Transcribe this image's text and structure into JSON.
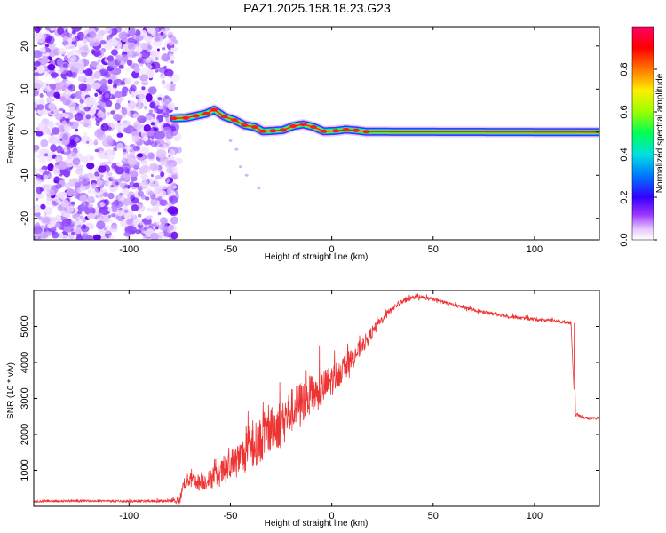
{
  "title": "PAZ1.2025.158.18.23.G23",
  "chart_data": [
    {
      "type": "heatmap",
      "xlabel": "Height of straight line (km)",
      "ylabel": "Frequency (Hz)",
      "xlim": [
        -147,
        132
      ],
      "ylim": [
        -25,
        24.5
      ],
      "xticks": [
        "-100",
        "-50",
        "0",
        "50",
        "100"
      ],
      "xtick_values": [
        -100,
        -50,
        0,
        50,
        100
      ],
      "yticks": [
        "20",
        "10",
        "0",
        "-10",
        "-20"
      ],
      "ytick_values": [
        20,
        10,
        0,
        -10,
        -20
      ],
      "colorbar": {
        "label": "Normalized spectral amplitude",
        "range": [
          0,
          1
        ],
        "ticks": [
          "0.0",
          "0.2",
          "0.4",
          "0.6",
          "0.8"
        ],
        "tick_values": [
          0.0,
          0.2,
          0.4,
          0.6,
          0.8
        ]
      },
      "noise_region_x": [
        -147,
        -77
      ],
      "ridge": [
        {
          "x": -78,
          "y": 3.2
        },
        {
          "x": -72,
          "y": 3.3
        },
        {
          "x": -67,
          "y": 3.8
        },
        {
          "x": -62,
          "y": 4.3
        },
        {
          "x": -58,
          "y": 5.2
        },
        {
          "x": -53,
          "y": 3.6
        },
        {
          "x": -48,
          "y": 2.8
        },
        {
          "x": -43,
          "y": 1.6
        },
        {
          "x": -38,
          "y": 1.2
        },
        {
          "x": -34,
          "y": 0.2
        },
        {
          "x": -29,
          "y": 0.3
        },
        {
          "x": -24,
          "y": 0.5
        },
        {
          "x": -19,
          "y": 1.4
        },
        {
          "x": -14,
          "y": 1.8
        },
        {
          "x": -9,
          "y": 1.2
        },
        {
          "x": -4,
          "y": 0.2
        },
        {
          "x": 2,
          "y": 0.3
        },
        {
          "x": 7,
          "y": 0.6
        },
        {
          "x": 12,
          "y": 0.4
        },
        {
          "x": 17,
          "y": 0.1
        },
        {
          "x": 132,
          "y": 0.0
        }
      ]
    },
    {
      "type": "line",
      "xlabel": "Height of straight line (km)",
      "ylabel": "SNR (10 * v/v)",
      "xlim": [
        -147,
        132
      ],
      "ylim": [
        0,
        6000
      ],
      "xticks": [
        "-100",
        "-50",
        "0",
        "50",
        "100"
      ],
      "xtick_values": [
        -100,
        -50,
        0,
        50,
        100
      ],
      "yticks": [
        "5000",
        "4000",
        "3000",
        "2000",
        "1000"
      ],
      "ytick_values": [
        5000,
        4000,
        3000,
        2000,
        1000
      ],
      "color": "#ee3333",
      "series": [
        {
          "x": [
            -147,
            -120,
            -100,
            -80,
            -75,
            -73,
            -70,
            -65,
            -60,
            -55,
            -50,
            -45,
            -40,
            -35,
            -30,
            -25,
            -20,
            -15,
            -10,
            -5,
            0,
            5,
            10,
            15,
            20,
            25,
            30,
            35,
            40,
            45,
            50,
            60,
            70,
            80,
            90,
            100,
            110,
            118,
            120,
            121,
            125,
            132
          ],
          "y": [
            140,
            150,
            140,
            150,
            160,
            650,
            750,
            650,
            750,
            900,
            1100,
            1350,
            1600,
            1850,
            2100,
            2350,
            2650,
            2900,
            3100,
            3250,
            3500,
            3800,
            4100,
            4450,
            4850,
            5200,
            5500,
            5700,
            5800,
            5800,
            5750,
            5600,
            5450,
            5350,
            5250,
            5200,
            5150,
            5100,
            2500,
            2550,
            2450,
            2450
          ],
          "amplitude": [
            50,
            45,
            50,
            60,
            200,
            300,
            350,
            400,
            450,
            600,
            750,
            850,
            1000,
            1050,
            1100,
            1100,
            1050,
            1000,
            950,
            850,
            750,
            600,
            500,
            400,
            300,
            200,
            150,
            120,
            100,
            90,
            90,
            80,
            80,
            80,
            80,
            80,
            80,
            80,
            60,
            60,
            60,
            60
          ]
        }
      ]
    }
  ]
}
